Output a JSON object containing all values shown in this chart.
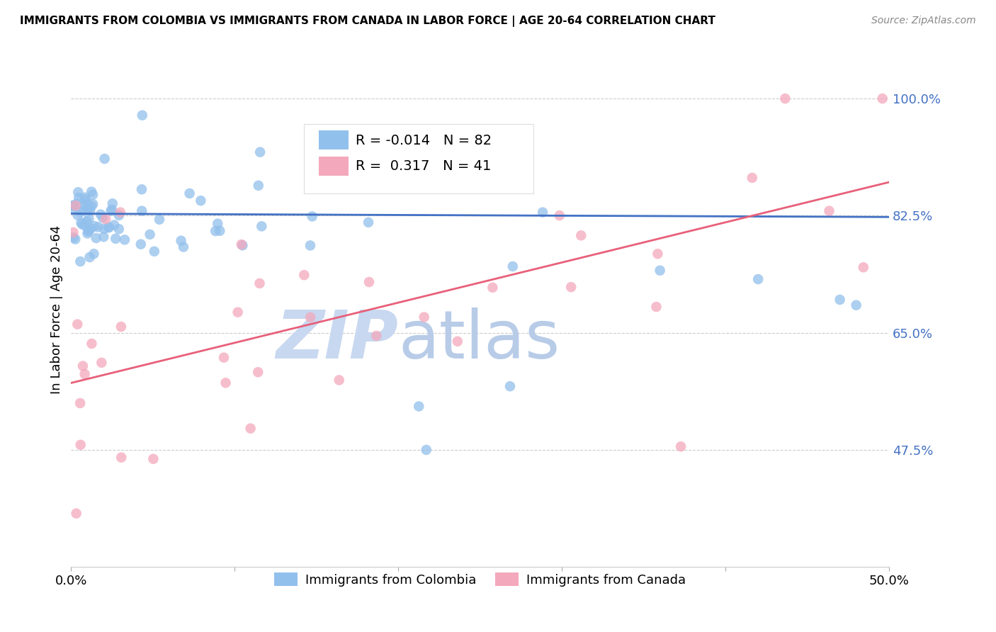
{
  "title": "IMMIGRANTS FROM COLOMBIA VS IMMIGRANTS FROM CANADA IN LABOR FORCE | AGE 20-64 CORRELATION CHART",
  "source": "Source: ZipAtlas.com",
  "ylabel": "In Labor Force | Age 20-64",
  "xlim": [
    0.0,
    0.5
  ],
  "ylim": [
    0.3,
    1.07
  ],
  "yticks": [
    0.475,
    0.65,
    0.825,
    1.0
  ],
  "ytick_labels": [
    "47.5%",
    "65.0%",
    "82.5%",
    "100.0%"
  ],
  "xticks": [
    0.0,
    0.1,
    0.2,
    0.3,
    0.4,
    0.5
  ],
  "xtick_labels": [
    "0.0%",
    "",
    "",
    "",
    "",
    "50.0%"
  ],
  "colombia_R": -0.014,
  "colombia_N": 82,
  "canada_R": 0.317,
  "canada_N": 41,
  "legend_colombia": "Immigrants from Colombia",
  "legend_canada": "Immigrants from Canada",
  "color_colombia": "#92C0EC",
  "color_canada": "#F4A8BC",
  "color_colombia_line": "#4472C4",
  "color_canada_line": "#E8607A",
  "color_dashed": "#92C0EC",
  "watermark_zip": "ZIP",
  "watermark_atlas": "atlas",
  "watermark_color": "#C8D8F0",
  "background_color": "#FFFFFF"
}
